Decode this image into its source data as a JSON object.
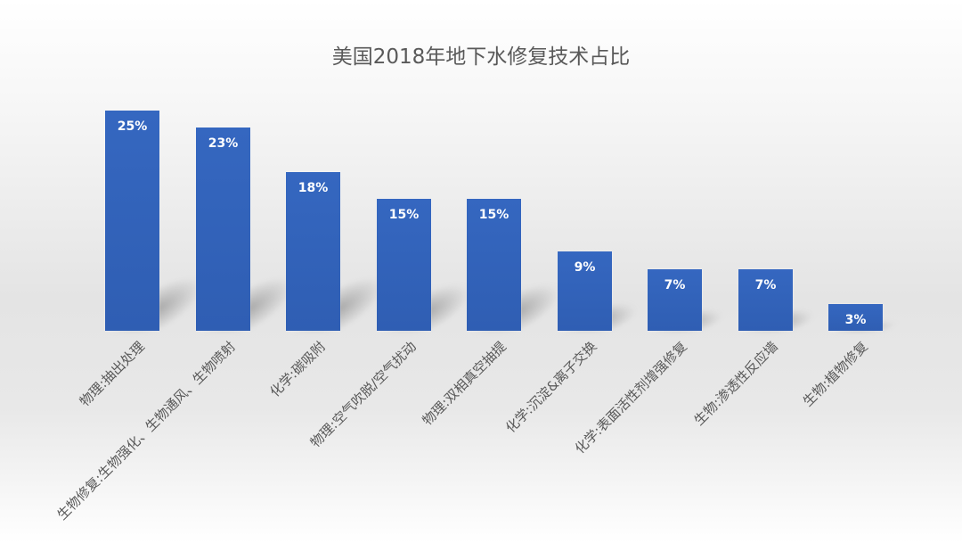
{
  "chart_data": {
    "type": "bar",
    "title": "美国2018年地下水修复技术占比",
    "xlabel": "",
    "ylabel": "",
    "ylim": [
      0,
      25
    ],
    "grid": false,
    "legend": null,
    "categories": [
      "物理:抽出处理",
      "生物修复:生物强化、生物通风、生物喷射",
      "化学:碳吸附",
      "物理:空气吹脱/空气扰动",
      "物理:双相真空抽提",
      "化学:沉淀&离子交换",
      "化学:表面活性剂增强修复",
      "生物:渗透性反应墙",
      "生物:植物修复"
    ],
    "values": [
      25,
      23,
      18,
      15,
      15,
      9,
      7,
      7,
      3
    ],
    "value_labels": [
      "25%",
      "23%",
      "18%",
      "15%",
      "15%",
      "9%",
      "7%",
      "7%",
      "3%"
    ],
    "bar_color": "#3162b8"
  }
}
